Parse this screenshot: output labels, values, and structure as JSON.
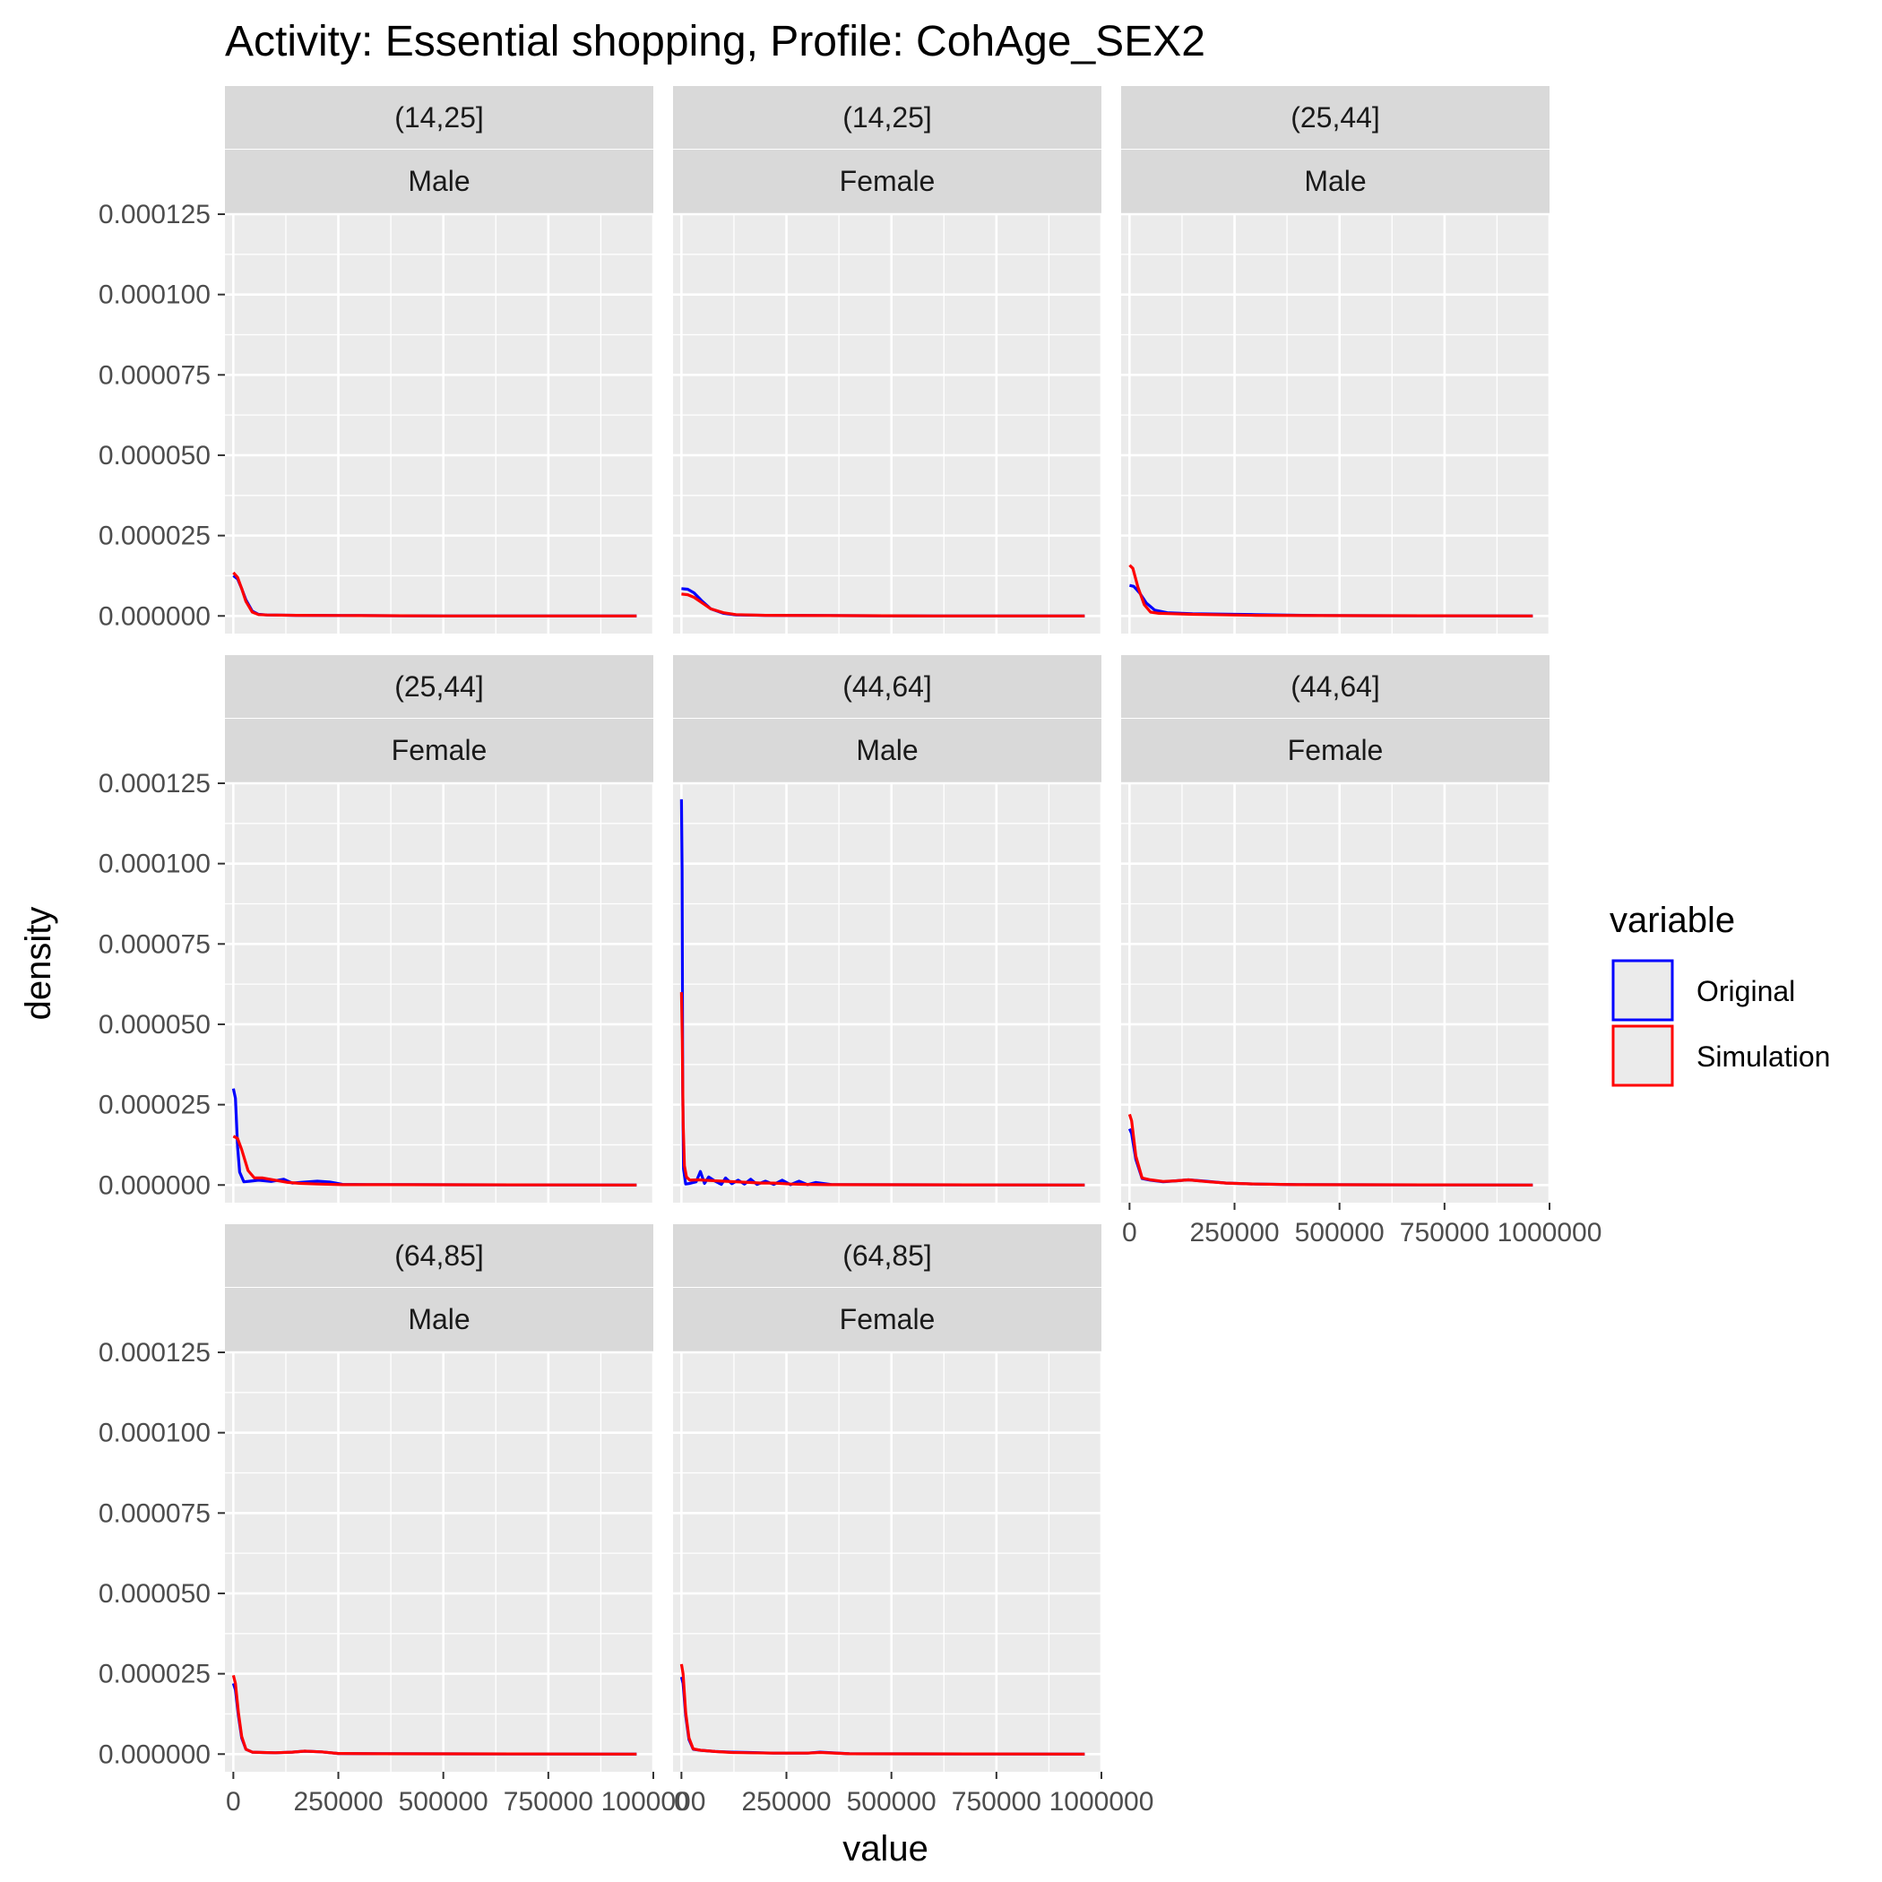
{
  "chart_data": {
    "type": "line",
    "title": "Activity: Essential shopping, Profile: CohAge_SEX2",
    "xlabel": "value",
    "ylabel": "density",
    "xlim": [
      -20000,
      1000000
    ],
    "ylim": [
      -5.5e-06,
      0.000125
    ],
    "x_ticks": [
      0,
      250000,
      500000,
      750000,
      1000000
    ],
    "x_tick_labels": [
      "0",
      "250000",
      "500000",
      "750000",
      "1000000"
    ],
    "y_ticks": [
      0,
      2.5e-05,
      5e-05,
      7.5e-05,
      0.0001,
      0.000125
    ],
    "y_tick_labels": [
      "0.000000",
      "0.000025",
      "0.000050",
      "0.000075",
      "0.000100",
      "0.000125"
    ],
    "legend": {
      "title": "variable",
      "position": "right",
      "entries": [
        {
          "name": "Original",
          "color": "#0000ff"
        },
        {
          "name": "Simulation",
          "color": "#ff0000"
        }
      ]
    },
    "panels": [
      {
        "age": "(14,25]",
        "sex": "Male",
        "series": [
          {
            "name": "Original",
            "x": [
              0,
              10000,
              20000,
              30000,
              45000,
              60000,
              80000,
              150000,
              300000,
              500000,
              960000
            ],
            "y": [
              1.25e-05,
              1.15e-05,
              8.5e-06,
              5e-06,
              1.5e-06,
              5e-07,
              3e-07,
              2e-07,
              1e-07,
              0,
              0
            ]
          },
          {
            "name": "Simulation",
            "x": [
              0,
              10000,
              20000,
              30000,
              45000,
              60000,
              80000,
              150000,
              300000,
              500000,
              960000
            ],
            "y": [
              1.35e-05,
              1.2e-05,
              8.5e-06,
              4.5e-06,
              1.2e-06,
              4e-07,
              3e-07,
              2e-07,
              1e-07,
              0,
              0
            ]
          }
        ]
      },
      {
        "age": "(14,25]",
        "sex": "Female",
        "series": [
          {
            "name": "Original",
            "x": [
              0,
              15000,
              30000,
              50000,
              70000,
              100000,
              130000,
              200000,
              350000,
              600000,
              960000
            ],
            "y": [
              8.5e-06,
              8.3e-06,
              7.2e-06,
              4.5e-06,
              2.2e-06,
              8e-07,
              3e-07,
              2e-07,
              1e-07,
              0,
              0
            ]
          },
          {
            "name": "Simulation",
            "x": [
              0,
              15000,
              30000,
              50000,
              70000,
              100000,
              130000,
              200000,
              350000,
              600000,
              960000
            ],
            "y": [
              6.8e-06,
              6.6e-06,
              5.8e-06,
              4e-06,
              2.2e-06,
              1e-06,
              4e-07,
              2e-07,
              1e-07,
              0,
              0
            ]
          }
        ]
      },
      {
        "age": "(25,44]",
        "sex": "Male",
        "series": [
          {
            "name": "Original",
            "x": [
              0,
              10000,
              25000,
              40000,
              60000,
              90000,
              150000,
              300000,
              450000,
              960000
            ],
            "y": [
              9.5e-06,
              9.2e-06,
              7e-06,
              4e-06,
              1.8e-06,
              1e-06,
              7e-07,
              4e-07,
              1e-07,
              0
            ]
          },
          {
            "name": "Simulation",
            "x": [
              0,
              8000,
              20000,
              35000,
              50000,
              70000,
              100000,
              150000,
              300000,
              450000,
              960000
            ],
            "y": [
              1.58e-05,
              1.48e-05,
              9e-06,
              3.5e-06,
              1.2e-06,
              8e-07,
              7e-07,
              5e-07,
              2e-07,
              1e-07,
              0
            ]
          }
        ]
      },
      {
        "age": "(25,44]",
        "sex": "Female",
        "series": [
          {
            "name": "Original",
            "x": [
              0,
              5000,
              10000,
              15000,
              25000,
              40000,
              60000,
              90000,
              120000,
              140000,
              160000,
              200000,
              230000,
              260000,
              320000,
              420000,
              960000
            ],
            "y": [
              3e-05,
              2.7e-05,
              1.2e-05,
              4e-06,
              1e-06,
              1.2e-06,
              1.5e-06,
              1.1e-06,
              1.8e-06,
              6e-07,
              8e-07,
              1.2e-06,
              9e-07,
              2e-07,
              1e-07,
              1e-07,
              0
            ]
          },
          {
            "name": "Simulation",
            "x": [
              0,
              10000,
              20000,
              35000,
              50000,
              70000,
              100000,
              130000,
              160000,
              200000,
              260000,
              350000,
              960000
            ],
            "y": [
              1.52e-05,
              1.45e-05,
              1.1e-05,
              4.5e-06,
              2.2e-06,
              2.2e-06,
              1.5e-06,
              8e-07,
              5e-07,
              3e-07,
              1e-07,
              1e-07,
              0
            ]
          }
        ]
      },
      {
        "age": "(44,64]",
        "sex": "Male",
        "series": [
          {
            "name": "Original",
            "x": [
              0,
              1500,
              3000,
              5000,
              10000,
              20000,
              35000,
              45000,
              55000,
              65000,
              80000,
              95000,
              105000,
              120000,
              135000,
              150000,
              165000,
              180000,
              200000,
              220000,
              240000,
              260000,
              280000,
              300000,
              320000,
              360000,
              960000
            ],
            "y": [
              0.00012,
              9.8e-05,
              3e-05,
              5e-06,
              3e-07,
              5e-07,
              1e-06,
              4.2e-06,
              5e-07,
              2.5e-06,
              1.2e-06,
              2e-07,
              2.2e-06,
              4e-07,
              1.5e-06,
              3e-07,
              1.8e-06,
              2e-07,
              1.2e-06,
              2e-07,
              1.5e-06,
              1e-07,
              1.2e-06,
              1e-07,
              8e-07,
              1e-07,
              0
            ]
          },
          {
            "name": "Simulation",
            "x": [
              0,
              2000,
              4000,
              7000,
              12000,
              20000,
              40000,
              70000,
              100000,
              130000,
              160000,
              190000,
              220000,
              260000,
              300000,
              350000,
              960000
            ],
            "y": [
              6e-05,
              4.5e-05,
              2e-05,
              6e-06,
              2.5e-06,
              1.5e-06,
              1.6e-06,
              1.4e-06,
              1.2e-06,
              1e-06,
              8e-07,
              6e-07,
              6e-07,
              3e-07,
              2e-07,
              1e-07,
              0
            ]
          }
        ]
      },
      {
        "age": "(44,64]",
        "sex": "Female",
        "series": [
          {
            "name": "Original",
            "x": [
              0,
              5000,
              15000,
              30000,
              50000,
              80000,
              110000,
              140000,
              180000,
              230000,
              300000,
              400000,
              960000
            ],
            "y": [
              1.75e-05,
              1.6e-05,
              8e-06,
              2e-06,
              1.5e-06,
              1e-06,
              1.3e-06,
              1.6e-06,
              1.2e-06,
              6e-07,
              3e-07,
              1e-07,
              0
            ]
          },
          {
            "name": "Simulation",
            "x": [
              0,
              5000,
              15000,
              30000,
              50000,
              80000,
              110000,
              140000,
              180000,
              230000,
              300000,
              400000,
              960000
            ],
            "y": [
              2.2e-05,
              2e-05,
              9e-06,
              2.2e-06,
              1.6e-06,
              1.1e-06,
              1.3e-06,
              1.6e-06,
              1.1e-06,
              6e-07,
              3e-07,
              1e-07,
              0
            ]
          }
        ]
      },
      {
        "age": "(64,85]",
        "sex": "Male",
        "series": [
          {
            "name": "Original",
            "x": [
              0,
              5000,
              12000,
              20000,
              30000,
              45000,
              70000,
              100000,
              140000,
              170000,
              210000,
              250000,
              350000,
              960000
            ],
            "y": [
              2.2e-05,
              2e-05,
              1.2e-05,
              5e-06,
              1.5e-06,
              6e-07,
              5e-07,
              4e-07,
              6e-07,
              9e-07,
              7e-07,
              2e-07,
              1e-07,
              0
            ]
          },
          {
            "name": "Simulation",
            "x": [
              0,
              5000,
              12000,
              20000,
              30000,
              45000,
              70000,
              100000,
              140000,
              170000,
              210000,
              250000,
              350000,
              960000
            ],
            "y": [
              2.45e-05,
              2.2e-05,
              1.3e-05,
              5.5e-06,
              1.5e-06,
              6e-07,
              5e-07,
              4e-07,
              6e-07,
              9e-07,
              7e-07,
              2e-07,
              1e-07,
              0
            ]
          }
        ]
      },
      {
        "age": "(64,85]",
        "sex": "Female",
        "series": [
          {
            "name": "Original",
            "x": [
              0,
              4000,
              10000,
              18000,
              28000,
              45000,
              80000,
              120000,
              160000,
              220000,
              300000,
              330000,
              400000,
              960000
            ],
            "y": [
              2.4e-05,
              2.2e-05,
              1.2e-05,
              4.5e-06,
              1.5e-06,
              1.2e-06,
              8e-07,
              6e-07,
              5e-07,
              3e-07,
              3e-07,
              6e-07,
              1e-07,
              0
            ]
          },
          {
            "name": "Simulation",
            "x": [
              0,
              4000,
              10000,
              18000,
              28000,
              45000,
              80000,
              120000,
              160000,
              220000,
              300000,
              330000,
              400000,
              960000
            ],
            "y": [
              2.8e-05,
              2.5e-05,
              1.3e-05,
              5e-06,
              1.6e-06,
              1.2e-06,
              8e-07,
              5e-07,
              4e-07,
              3e-07,
              3e-07,
              5e-07,
              1e-07,
              0
            ]
          }
        ]
      }
    ]
  }
}
